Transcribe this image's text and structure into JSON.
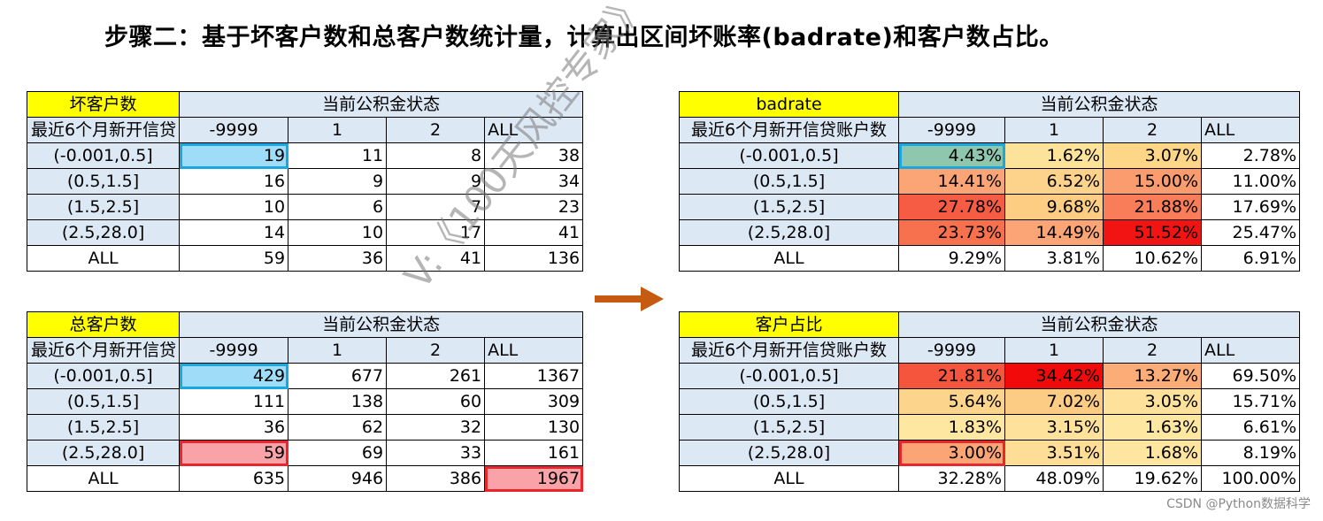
{
  "title": "步骤二：基于坏客户数和总客户数统计量，计算出区间坏账率(badrate)和客户数占比。",
  "tables": {
    "bad": {
      "corner": "坏客户数",
      "group_header": "当前公积金状态",
      "row_header": "最近6个月新开信贷",
      "cols": [
        "-9999",
        "1",
        "2",
        "ALL"
      ],
      "rows": [
        {
          "label": "(-0.001,0.5]",
          "cells": [
            "19",
            "11",
            "8",
            "38"
          ]
        },
        {
          "label": "(0.5,1.5]",
          "cells": [
            "16",
            "9",
            "9",
            "34"
          ]
        },
        {
          "label": "(1.5,2.5]",
          "cells": [
            "10",
            "6",
            "7",
            "23"
          ]
        },
        {
          "label": "(2.5,28.0]",
          "cells": [
            "14",
            "10",
            "17",
            "41"
          ]
        },
        {
          "label": "ALL",
          "cells": [
            "59",
            "36",
            "41",
            "136"
          ]
        }
      ]
    },
    "total": {
      "corner": "总客户数",
      "group_header": "当前公积金状态",
      "row_header": "最近6个月新开信贷",
      "cols": [
        "-9999",
        "1",
        "2",
        "ALL"
      ],
      "rows": [
        {
          "label": "(-0.001,0.5]",
          "cells": [
            "429",
            "677",
            "261",
            "1367"
          ]
        },
        {
          "label": "(0.5,1.5]",
          "cells": [
            "111",
            "138",
            "60",
            "309"
          ]
        },
        {
          "label": "(1.5,2.5]",
          "cells": [
            "36",
            "62",
            "32",
            "130"
          ]
        },
        {
          "label": "(2.5,28.0]",
          "cells": [
            "59",
            "69",
            "33",
            "161"
          ]
        },
        {
          "label": "ALL",
          "cells": [
            "635",
            "946",
            "386",
            "1967"
          ]
        }
      ]
    },
    "badrate": {
      "corner": "badrate",
      "group_header": "当前公积金状态",
      "row_header": "最近6个月新开信贷账户数",
      "cols": [
        "-9999",
        "1",
        "2",
        "ALL"
      ],
      "rows": [
        {
          "label": "(-0.001,0.5]",
          "cells": [
            "4.43%",
            "1.62%",
            "3.07%",
            "2.78%"
          ]
        },
        {
          "label": "(0.5,1.5]",
          "cells": [
            "14.41%",
            "6.52%",
            "15.00%",
            "11.00%"
          ]
        },
        {
          "label": "(1.5,2.5]",
          "cells": [
            "27.78%",
            "9.68%",
            "21.88%",
            "17.69%"
          ]
        },
        {
          "label": "(2.5,28.0]",
          "cells": [
            "23.73%",
            "14.49%",
            "51.52%",
            "25.47%"
          ]
        },
        {
          "label": "ALL",
          "cells": [
            "9.29%",
            "3.81%",
            "10.62%",
            "6.91%"
          ]
        }
      ]
    },
    "share": {
      "corner": "客户占比",
      "group_header": "当前公积金状态",
      "row_header": "最近6个月新开信贷账户数",
      "cols": [
        "-9999",
        "1",
        "2",
        "ALL"
      ],
      "rows": [
        {
          "label": "(-0.001,0.5]",
          "cells": [
            "21.81%",
            "34.42%",
            "13.27%",
            "69.50%"
          ]
        },
        {
          "label": "(0.5,1.5]",
          "cells": [
            "5.64%",
            "7.02%",
            "3.05%",
            "15.71%"
          ]
        },
        {
          "label": "(1.5,2.5]",
          "cells": [
            "1.83%",
            "3.15%",
            "1.63%",
            "6.61%"
          ]
        },
        {
          "label": "(2.5,28.0]",
          "cells": [
            "3.00%",
            "3.51%",
            "1.68%",
            "8.19%"
          ]
        },
        {
          "label": "ALL",
          "cells": [
            "32.28%",
            "48.09%",
            "19.62%",
            "100.00%"
          ]
        }
      ]
    }
  },
  "heat": {
    "badrate": [
      [
        "#8fc7ae",
        "#fde39a",
        "#fdd688",
        null
      ],
      [
        "#fba576",
        "#fdd28a",
        "#fb9c6e",
        null
      ],
      [
        "#f65c44",
        "#fdcd84",
        "#f87d58",
        null
      ],
      [
        "#f8714e",
        "#fba576",
        "#f21313",
        null
      ],
      [
        null,
        null,
        null,
        null
      ]
    ],
    "share": [
      [
        "#f5553c",
        "#f20a0a",
        "#fbac77",
        null
      ],
      [
        "#fdd48b",
        "#fdcc84",
        "#fee19b",
        null
      ],
      [
        "#fee7a1",
        "#fee29c",
        "#fee7a1",
        null
      ],
      [
        "#fba475",
        "#fedd96",
        "#fee6a0",
        null
      ],
      [
        null,
        null,
        null,
        null
      ]
    ]
  },
  "colors": {
    "corner": "#ffff00",
    "header": "#dde8f5",
    "highlight_blue": "#9fdcf7",
    "highlight_red": "#f9a3a8",
    "arrow": "#c55a11"
  },
  "watermark": "V:《100天风控专家》",
  "credit": "CSDN @Python数据科学",
  "arrow_icon": "right-arrow-icon"
}
